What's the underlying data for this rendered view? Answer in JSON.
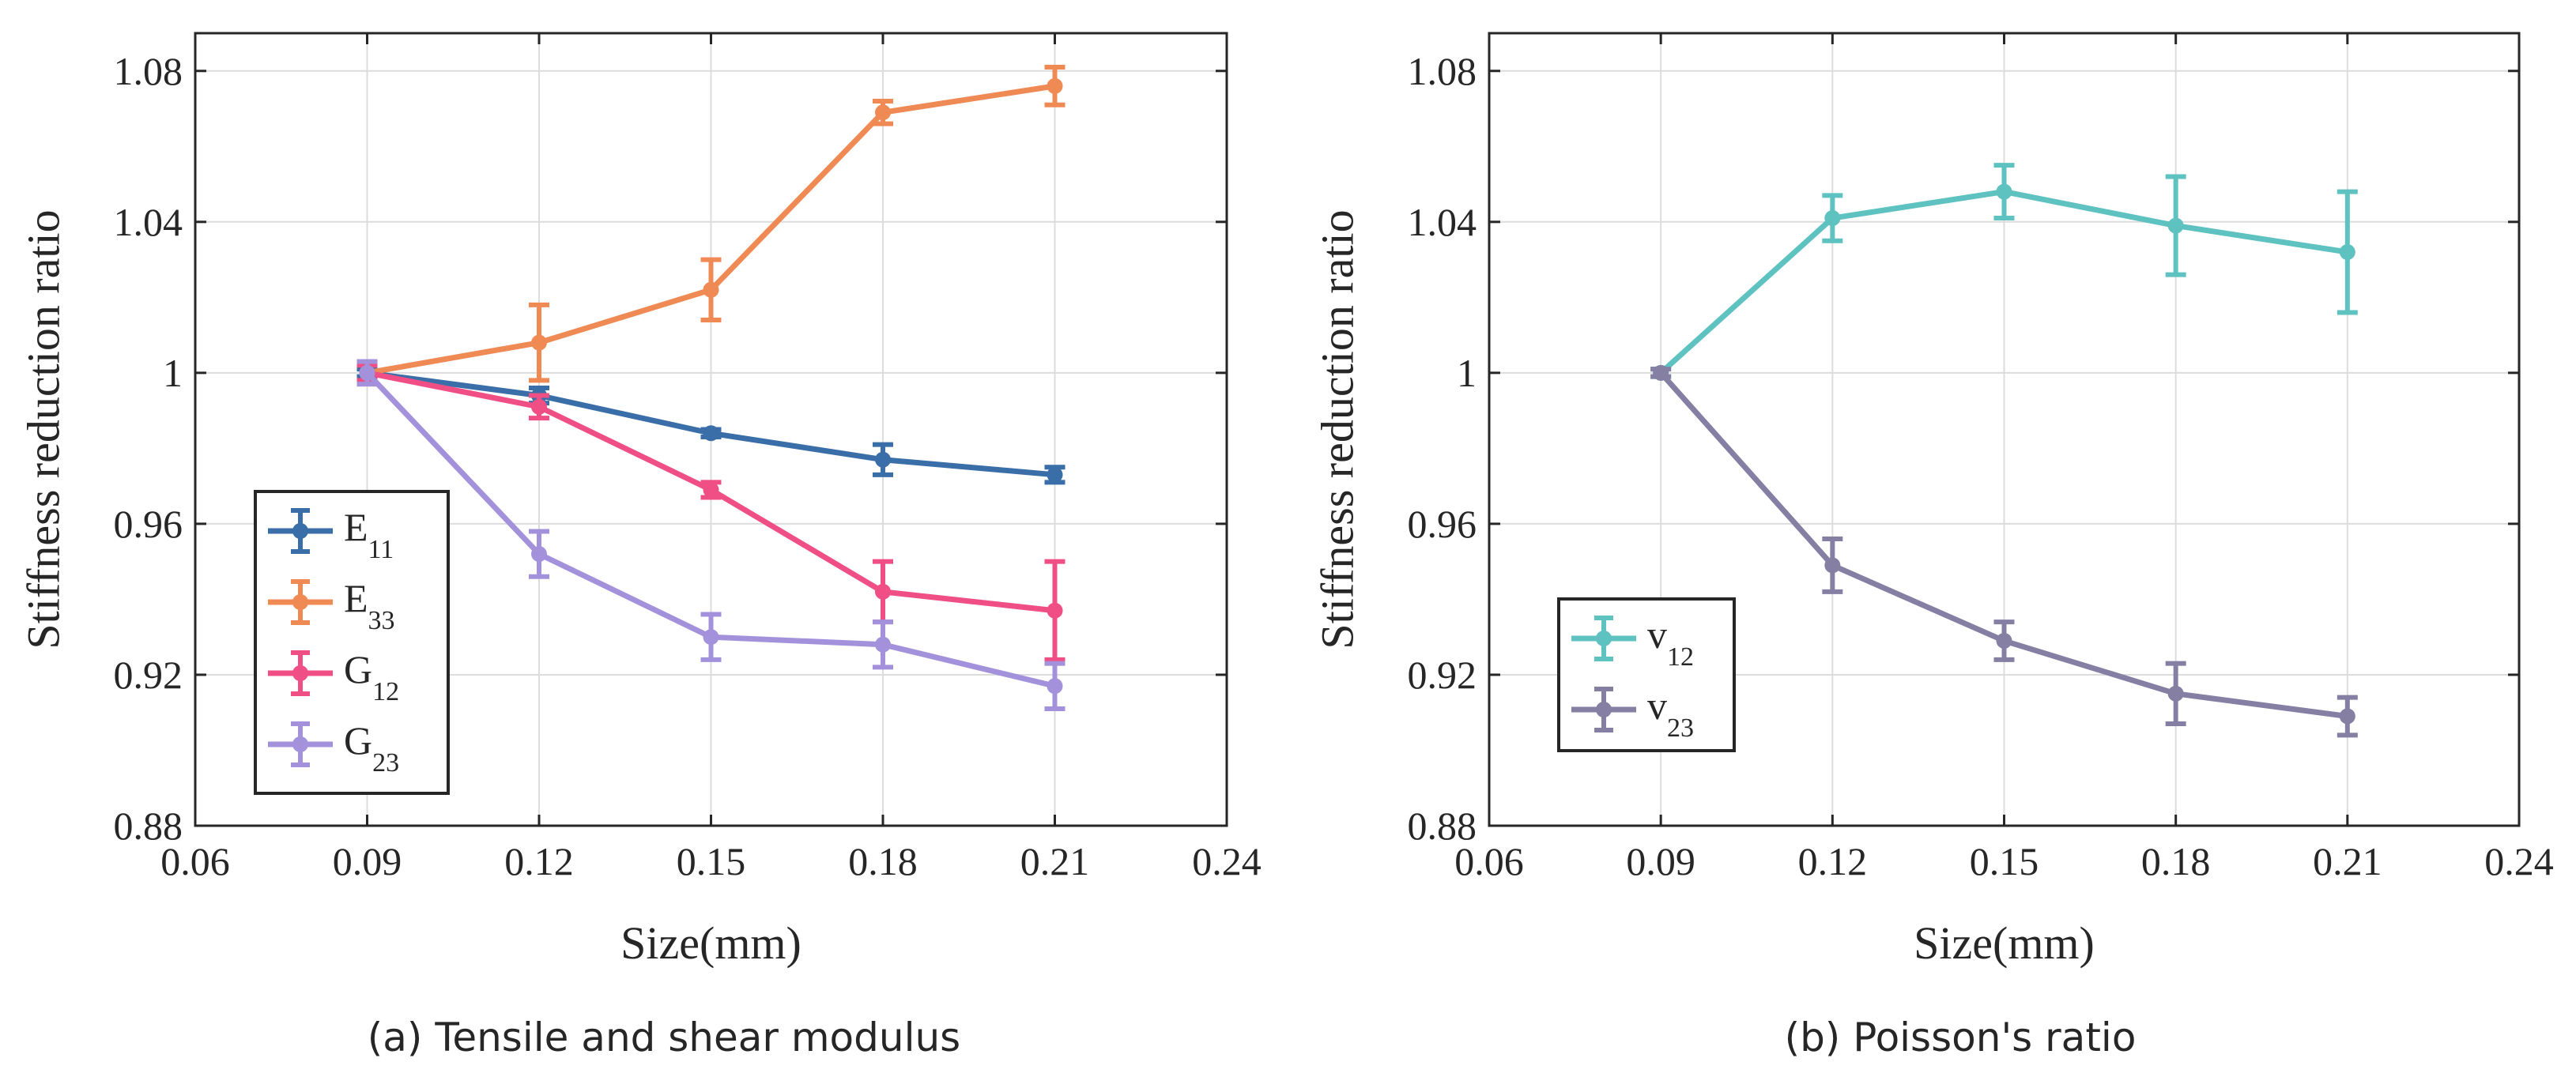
{
  "figure": {
    "captions": [
      "(a) Tensile and shear modulus",
      "(b) Poisson's ratio"
    ]
  },
  "chart_data": [
    {
      "type": "line",
      "title": "",
      "caption": "(a) Tensile and shear modulus",
      "xlabel": "Size(mm)",
      "ylabel": "Stiffness reduction ratio",
      "xlim": [
        0.06,
        0.24
      ],
      "ylim": [
        0.88,
        1.09
      ],
      "xticks": [
        0.06,
        0.09,
        0.12,
        0.15,
        0.18,
        0.21,
        0.24
      ],
      "xtick_labels": [
        "0.06",
        "0.09",
        "0.12",
        "0.15",
        "0.18",
        "0.21",
        "0.24"
      ],
      "yticks": [
        0.88,
        0.92,
        0.96,
        1.0,
        1.04,
        1.08
      ],
      "ytick_labels": [
        "0.88",
        "0.92",
        "0.96",
        "1",
        "1.04",
        "1.08"
      ],
      "grid": true,
      "legend_position": "bottom-left",
      "x": [
        0.09,
        0.12,
        0.15,
        0.18,
        0.21
      ],
      "series": [
        {
          "name": "E",
          "sub": "11",
          "color": "#3a6ea8",
          "values": [
            1.0,
            0.994,
            0.984,
            0.977,
            0.973
          ],
          "errors": [
            0.001,
            0.002,
            0.001,
            0.004,
            0.002
          ]
        },
        {
          "name": "E",
          "sub": "33",
          "color": "#f08a55",
          "values": [
            1.0,
            1.008,
            1.022,
            1.069,
            1.076
          ],
          "errors": [
            0.003,
            0.01,
            0.008,
            0.003,
            0.005
          ]
        },
        {
          "name": "G",
          "sub": "12",
          "color": "#f04f86",
          "values": [
            1.0,
            0.991,
            0.969,
            0.942,
            0.937
          ],
          "errors": [
            0.002,
            0.003,
            0.002,
            0.008,
            0.013
          ]
        },
        {
          "name": "G",
          "sub": "23",
          "color": "#a392db",
          "values": [
            1.0,
            0.952,
            0.93,
            0.928,
            0.917
          ],
          "errors": [
            0.003,
            0.006,
            0.006,
            0.006,
            0.006
          ]
        }
      ]
    },
    {
      "type": "line",
      "title": "",
      "caption": "(b) Poisson's ratio",
      "xlabel": "Size(mm)",
      "ylabel": "Stiffness reduction ratio",
      "xlim": [
        0.06,
        0.24
      ],
      "ylim": [
        0.88,
        1.09
      ],
      "xticks": [
        0.06,
        0.09,
        0.12,
        0.15,
        0.18,
        0.21,
        0.24
      ],
      "xtick_labels": [
        "0.06",
        "0.09",
        "0.12",
        "0.15",
        "0.18",
        "0.21",
        "0.24"
      ],
      "yticks": [
        0.88,
        0.92,
        0.96,
        1.0,
        1.04,
        1.08
      ],
      "ytick_labels": [
        "0.88",
        "0.92",
        "0.96",
        "1",
        "1.04",
        "1.08"
      ],
      "grid": true,
      "legend_position": "bottom-left",
      "x": [
        0.09,
        0.12,
        0.15,
        0.18,
        0.21
      ],
      "series": [
        {
          "name": "v",
          "sub": "12",
          "color": "#5ec2c0",
          "values": [
            1.0,
            1.041,
            1.048,
            1.039,
            1.032
          ],
          "errors": [
            0.001,
            0.006,
            0.007,
            0.013,
            0.016
          ]
        },
        {
          "name": "v",
          "sub": "23",
          "color": "#857fa3",
          "values": [
            1.0,
            0.949,
            0.929,
            0.915,
            0.909
          ],
          "errors": [
            0.001,
            0.007,
            0.005,
            0.008,
            0.005
          ]
        }
      ]
    }
  ]
}
